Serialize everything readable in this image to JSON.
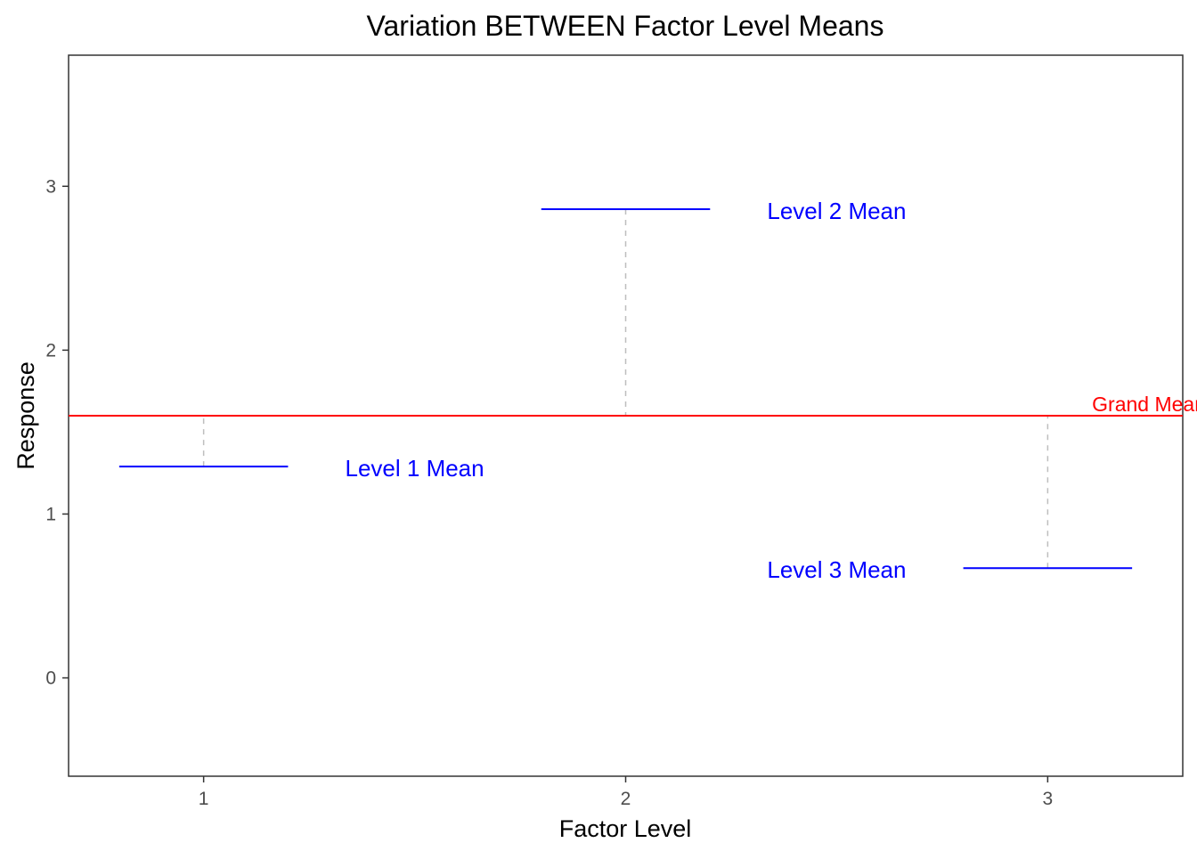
{
  "chart_data": {
    "type": "line",
    "title": "Variation BETWEEN Factor Level Means",
    "xlabel": "Factor Level",
    "ylabel": "Response",
    "x_ticks": [
      "1",
      "2",
      "3"
    ],
    "y_ticks": [
      0,
      1,
      2,
      3
    ],
    "xlim": [
      0.68,
      3.32
    ],
    "ylim": [
      -0.6,
      3.8
    ],
    "grid": false,
    "grand_mean": {
      "value": 1.6,
      "label": "Grand Mean",
      "color": "#ff0000"
    },
    "level_means": [
      {
        "level": 1,
        "value": 1.29,
        "label": "Level 1 Mean",
        "label_x": 1.5
      },
      {
        "level": 2,
        "value": 2.86,
        "label": "Level 2 Mean",
        "label_x": 2.5
      },
      {
        "level": 3,
        "value": 0.67,
        "label": "Level 3 Mean",
        "label_x": 2.5
      }
    ],
    "segment_half_width": 0.2,
    "mean_color": "#0000ff",
    "deviation_color": "#bebebe"
  }
}
